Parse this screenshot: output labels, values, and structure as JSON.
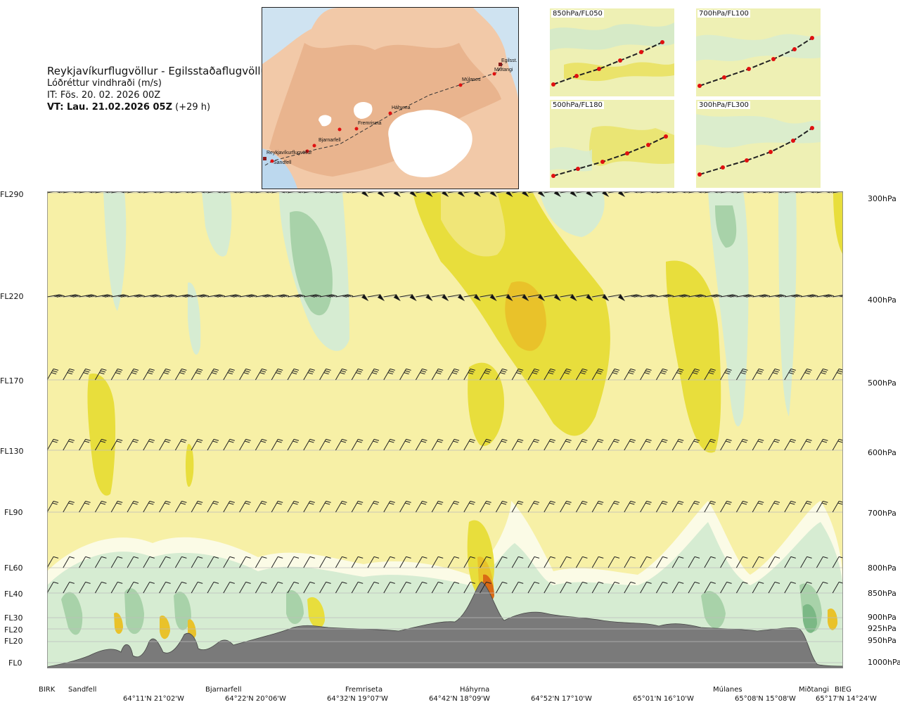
{
  "header": {
    "title": "Reykjavíkurflugvöllur - Egilsstaðaflugvöllur",
    "subtitle": "Lóðréttur vindhraði (m/s)",
    "issue_time": "IT: Fös. 20. 02. 2026 00Z",
    "valid_time_bold": "VT: Lau. 21.02.2026 05Z",
    "valid_time_offset": " (+29 h)"
  },
  "route_map": {
    "stations": [
      "Reykjavíkurflugvöllur",
      "Sandfell",
      "Bjarnarfell",
      "Fremriseta",
      "Háhyrna",
      "Múlanes",
      "Miðtangi",
      "Egilsst."
    ]
  },
  "mini_maps": [
    {
      "label": "850hPa/FL050"
    },
    {
      "label": "700hPa/FL100"
    },
    {
      "label": "500hPa/FL180"
    },
    {
      "label": "300hPa/FL300"
    }
  ],
  "left_axis": [
    "FL290",
    "FL220",
    "FL170",
    "FL130",
    "FL90",
    "FL60",
    "FL40",
    "FL30",
    "FL20",
    "FL20",
    "FL0"
  ],
  "right_axis": [
    "300hPa",
    "400hPa",
    "500hPa",
    "600hPa",
    "700hPa",
    "800hPa",
    "850hPa",
    "900hPa",
    "925hPa",
    "950hPa",
    "1000hPa"
  ],
  "bottom_stations": [
    "BIRK",
    "Sandfell",
    "Bjarnarfell",
    "Fremriseta",
    "Háhyrna",
    "Múlanes",
    "Miðtangi",
    "BIEG"
  ],
  "bottom_coords": [
    "64°11'N 21°02'W",
    "64°22'N 20°06'W",
    "64°32'N 19°07'W",
    "64°42'N 18°09'W",
    "64°52'N 17°10'W",
    "65°01'N 16°10'W",
    "65°08'N 15°08'W",
    "65°17'N 14°24'W"
  ],
  "colors": {
    "neutral": "#f7f0a6",
    "updraft_1": "#f0e678",
    "updraft_2": "#e8de3c",
    "updraft_3": "#e9c22a",
    "updraft_4": "#e8a018",
    "updraft_5": "#d96a14",
    "downdraft_1": "#fbfbe6",
    "downdraft_2": "#d6ecd2",
    "downdraft_3": "#a8d2a9",
    "downdraft_4": "#7bb885",
    "terrain": "#7a7a7a",
    "route_dot": "#e01010"
  }
}
